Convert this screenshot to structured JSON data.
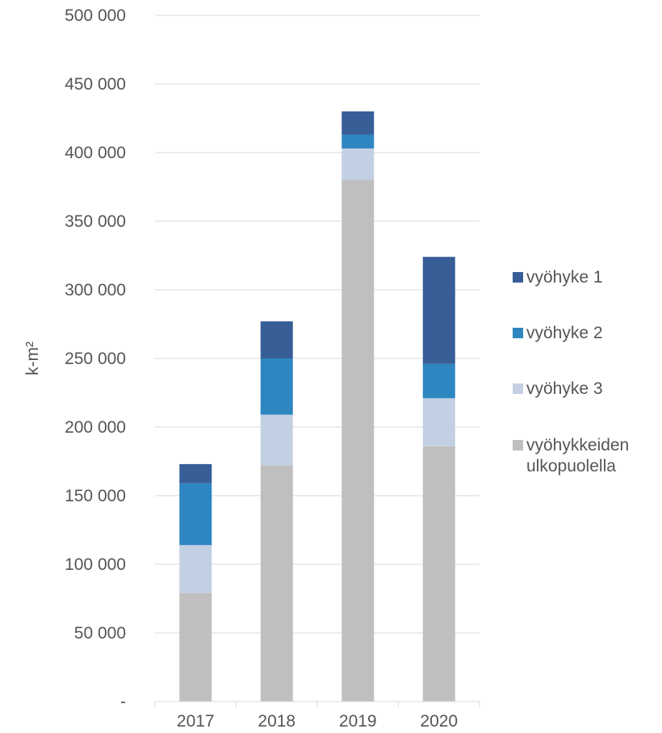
{
  "chart_data": {
    "type": "bar",
    "stacked": true,
    "title": "",
    "xlabel": "",
    "ylabel": "k-m²",
    "ylim": [
      0,
      500000
    ],
    "ytick_values": [
      0,
      50000,
      100000,
      150000,
      200000,
      250000,
      300000,
      350000,
      400000,
      450000,
      500000
    ],
    "ytick_labels": [
      "-",
      "50 000",
      "100 000",
      "150 000",
      "200 000",
      "250 000",
      "300 000",
      "350 000",
      "400 000",
      "450 000",
      "500 000"
    ],
    "categories": [
      "2017",
      "2018",
      "2019",
      "2020"
    ],
    "grid": true,
    "legend_position": "right",
    "legend_order": [
      "vyöhyke 1",
      "vyöhyke 2",
      "vyöhyke 3",
      "vyöhykkeiden ulkopuolella"
    ],
    "series": [
      {
        "name": "vyöhykkeiden ulkopuolella",
        "label_lines": [
          "vyöhykkeiden",
          "ulkopuolella"
        ],
        "color": "#bfbfbf",
        "values": [
          79000,
          172000,
          380000,
          186000
        ]
      },
      {
        "name": "vyöhyke 3",
        "label_lines": [
          "vyöhyke 3"
        ],
        "color": "#c3d0e3",
        "values": [
          35000,
          37000,
          23000,
          35000
        ]
      },
      {
        "name": "vyöhyke 2",
        "label_lines": [
          "vyöhyke 2"
        ],
        "color": "#2e86c1",
        "values": [
          45000,
          41000,
          10000,
          25000
        ]
      },
      {
        "name": "vyöhyke 1",
        "label_lines": [
          "vyöhyke 1"
        ],
        "color": "#375e97",
        "values": [
          14000,
          27000,
          17000,
          78000
        ]
      }
    ]
  }
}
